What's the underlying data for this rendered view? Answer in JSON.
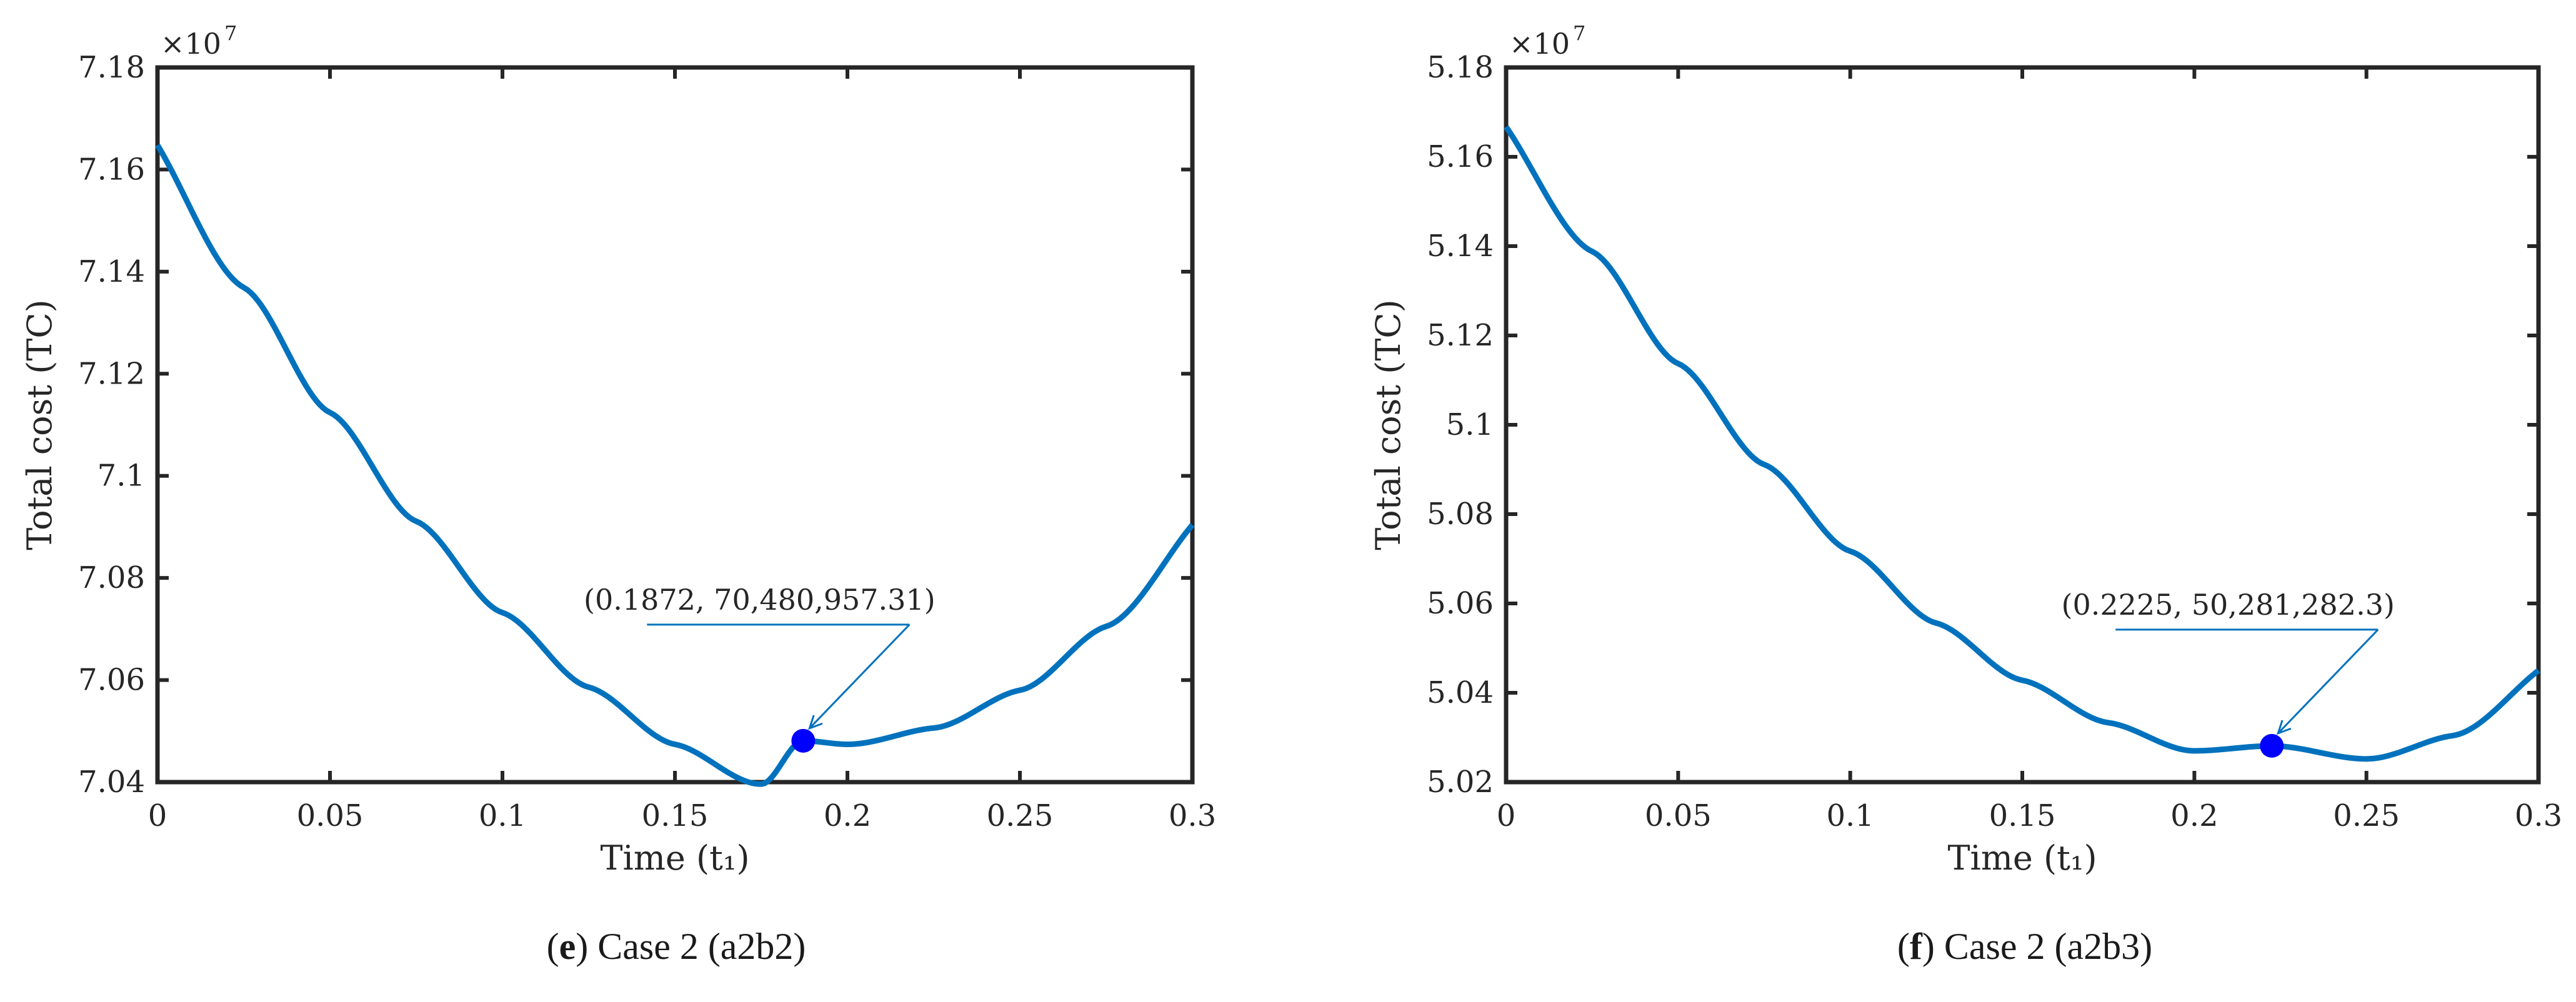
{
  "chart_data": [
    {
      "type": "line",
      "panel_id": "e",
      "caption": {
        "letter": "e",
        "text": " Case 2 (a2b2)"
      },
      "xlabel": "Time (t₁)",
      "ylabel": "Total cost (TC)",
      "exponent_label": "×10",
      "exponent_power": "7",
      "xlim": [
        0,
        0.3
      ],
      "ylim": [
        7.04,
        7.18
      ],
      "xticks": [
        "0",
        "0.05",
        "0.1",
        "0.15",
        "0.2",
        "0.25",
        "0.3"
      ],
      "xtick_values": [
        0,
        0.05,
        0.1,
        0.15,
        0.2,
        0.25,
        0.3
      ],
      "yticks": [
        "7.04",
        "7.06",
        "7.08",
        "7.1",
        "7.12",
        "7.14",
        "7.16",
        "7.18"
      ],
      "ytick_values": [
        7.04,
        7.06,
        7.08,
        7.1,
        7.12,
        7.14,
        7.16,
        7.18
      ],
      "series": [
        {
          "x": [
            0,
            0.025,
            0.05,
            0.075,
            0.1,
            0.125,
            0.15,
            0.175,
            0.1872,
            0.2,
            0.225,
            0.25,
            0.275,
            0.3
          ],
          "y": [
            7.1648,
            7.1369,
            7.1124,
            7.0911,
            7.0732,
            7.0586,
            7.0474,
            7.0396,
            7.0481,
            7.0474,
            7.0506,
            7.058,
            7.0705,
            7.0904
          ],
          "values_in_units_of_1e7": true
        }
      ],
      "marker": {
        "x": 0.1872,
        "y": 7.0480957
      },
      "annotation": {
        "text": "(0.1872,  70,480,957.31)"
      },
      "grid": false,
      "line_color": "#0072BD",
      "marker_color": "#0000FF"
    },
    {
      "type": "line",
      "panel_id": "f",
      "caption": {
        "letter": "f",
        "text": " Case 2 (a2b3)"
      },
      "xlabel": "Time (t₁)",
      "ylabel": "Total cost (TC)",
      "exponent_label": "×10",
      "exponent_power": "7",
      "xlim": [
        0,
        0.3
      ],
      "ylim": [
        5.02,
        5.18
      ],
      "xticks": [
        "0",
        "0.05",
        "0.1",
        "0.15",
        "0.2",
        "0.25",
        "0.3"
      ],
      "xtick_values": [
        0,
        0.05,
        0.1,
        0.15,
        0.2,
        0.25,
        0.3
      ],
      "yticks": [
        "5.02",
        "5.04",
        "5.06",
        "5.08",
        "5.1",
        "5.12",
        "5.14",
        "5.16",
        "5.18"
      ],
      "ytick_values": [
        5.02,
        5.04,
        5.06,
        5.08,
        5.1,
        5.12,
        5.14,
        5.16,
        5.18
      ],
      "series": [
        {
          "x": [
            0,
            0.025,
            0.05,
            0.075,
            0.1,
            0.125,
            0.15,
            0.175,
            0.2,
            0.2225,
            0.25,
            0.275,
            0.3
          ],
          "y": [
            5.1667,
            5.1388,
            5.1137,
            5.0911,
            5.0717,
            5.0556,
            5.0428,
            5.0333,
            5.027,
            5.0281,
            5.0252,
            5.0304,
            5.045
          ],
          "values_in_units_of_1e7": true
        }
      ],
      "marker": {
        "x": 0.2225,
        "y": 5.0281282
      },
      "annotation": {
        "text": "(0.2225,  50,281,282.3)"
      },
      "grid": false,
      "line_color": "#0072BD",
      "marker_color": "#0000FF"
    }
  ]
}
